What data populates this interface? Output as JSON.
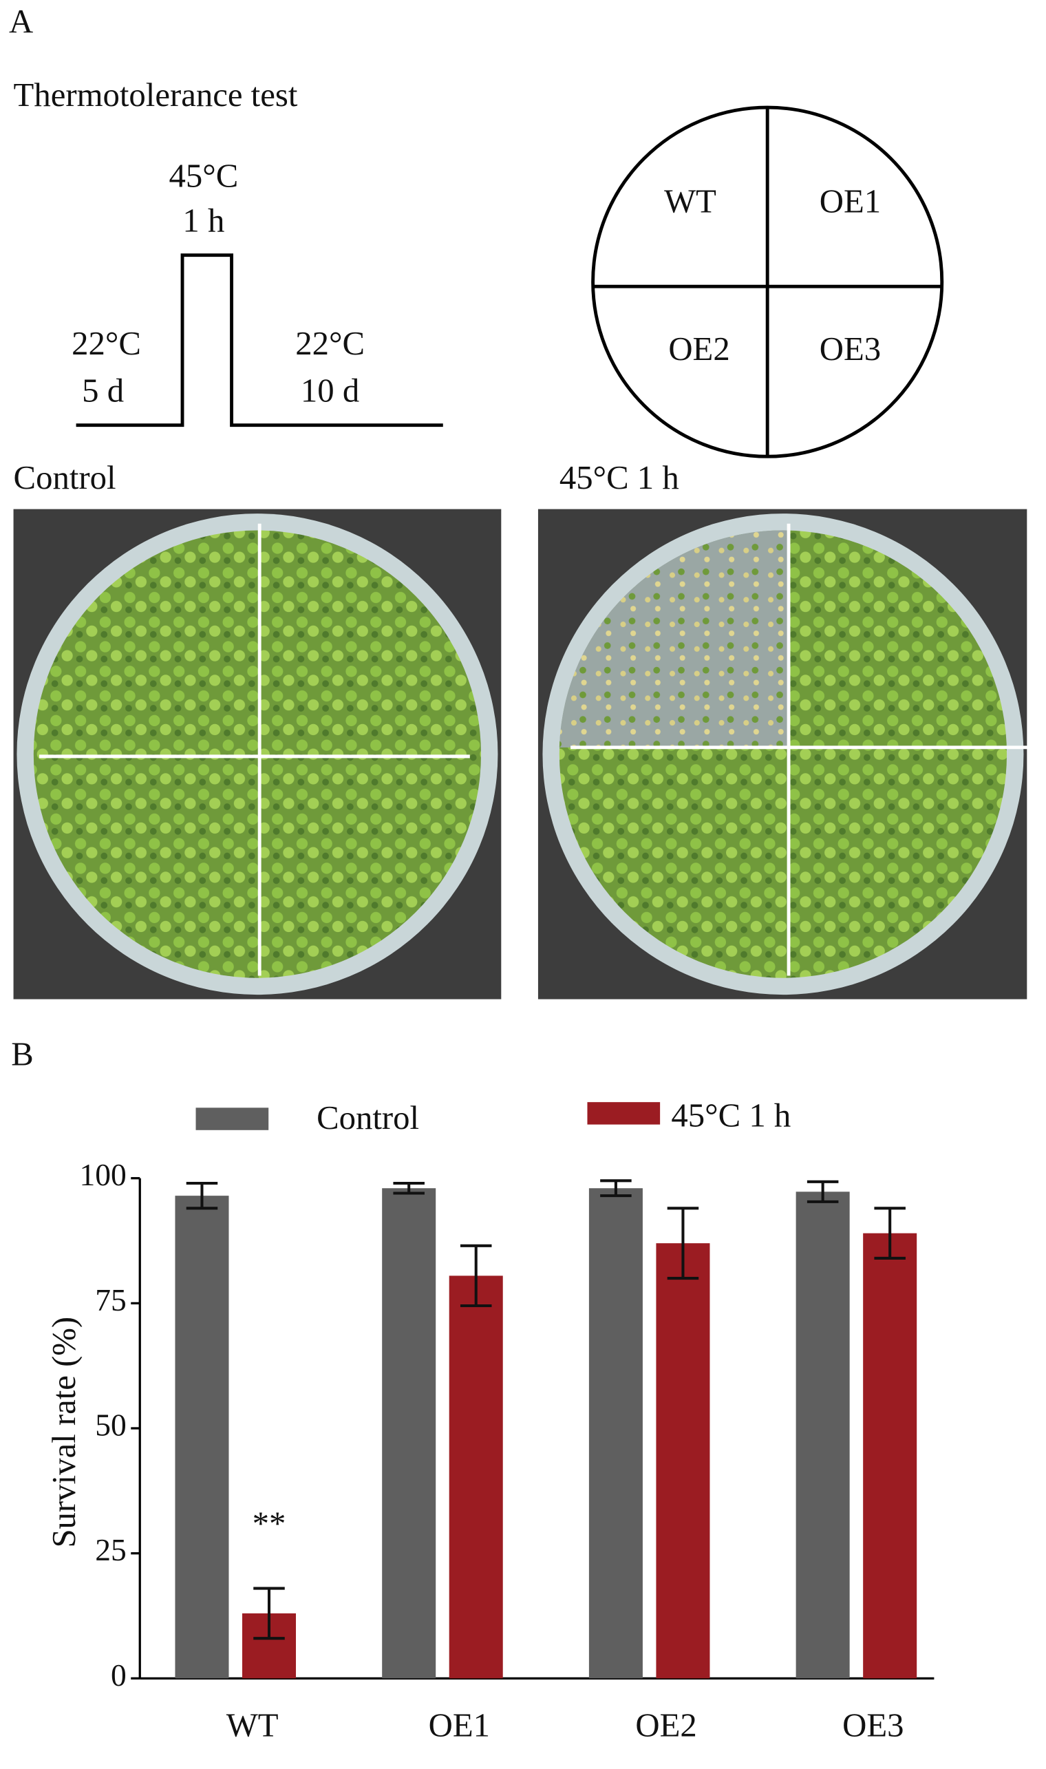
{
  "panel_a": {
    "label": "A",
    "title": "Thermotolerance test",
    "protocol": [
      {
        "temp": "22°C",
        "duration": "5 d"
      },
      {
        "temp": "45°C",
        "duration": "1 h"
      },
      {
        "temp": "22°C",
        "duration": "10 d"
      }
    ],
    "plate_layout": [
      "WT",
      "OE1",
      "OE2",
      "OE3"
    ],
    "photos": [
      "Control",
      "45°C 1 h"
    ]
  },
  "panel_b_label": "B",
  "chart_data": {
    "type": "bar",
    "y_label": "Survival rate (%)",
    "categories": [
      "WT",
      "OE1",
      "OE2",
      "OE3"
    ],
    "series": [
      {
        "name": "Control",
        "color": "#5f5f5f",
        "values": [
          96.5,
          98,
          98,
          97.3
        ],
        "errors": [
          2.5,
          1,
          1.5,
          2
        ]
      },
      {
        "name": "45°C   1 h",
        "color": "#9b1c22",
        "values": [
          13,
          80.5,
          87,
          89
        ],
        "errors": [
          5,
          6,
          7,
          5
        ]
      }
    ],
    "annotations": [
      "**"
    ],
    "ylim": [
      0,
      100
    ],
    "yticks": [
      0,
      25,
      50,
      75,
      100
    ],
    "grid": false
  }
}
